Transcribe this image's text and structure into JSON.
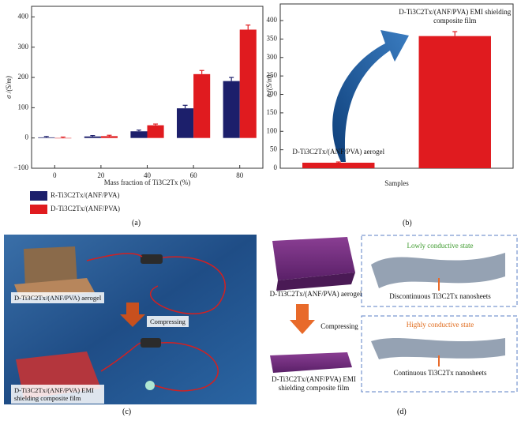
{
  "chart_data": [
    {
      "type": "bar",
      "label": "(a)",
      "y_label": "σ /(S/m)",
      "x_label": "Mass fraction of Ti3C2Tx (%)",
      "categories": [
        "0",
        "20",
        "40",
        "60",
        "80"
      ],
      "series": [
        {
          "name": "R-Ti3C2Tx/(ANF/PVA)",
          "color": "#1c1f6b",
          "values": [
            2,
            5,
            22,
            98,
            188
          ],
          "errors": [
            3,
            3,
            4,
            10,
            12
          ]
        },
        {
          "name": "D-Ti3C2Tx/(ANF/PVA)",
          "color": "#e01b1f",
          "values": [
            0,
            6,
            42,
            211,
            358
          ],
          "errors": [
            3,
            3,
            4,
            12,
            15
          ]
        }
      ],
      "ylim": [
        -100,
        435
      ],
      "yticks": [
        {
          "value": -100,
          "label": "−100"
        },
        0,
        100,
        200,
        300,
        400
      ],
      "legend": "bottom-left"
    },
    {
      "type": "bar",
      "label": "(b)",
      "y_label": "σ /(S/m)",
      "x_label": "Samples",
      "categories": [
        "D-Ti3C2Tx/(ANF/PVA) aerogel",
        "D-Ti3C2Tx/(ANF/PVA) EMI shielding composite film"
      ],
      "values": [
        15,
        358
      ],
      "errors": [
        2,
        12
      ],
      "color": "#e01b1f",
      "ylim": [
        0,
        445
      ],
      "yticks": [
        0,
        50,
        100,
        150,
        200,
        250,
        300,
        350,
        400
      ]
    }
  ],
  "photo_panel": {
    "label": "(c)",
    "top_caption": "D-Ti3C2Tx/(ANF/PVA) aerogel",
    "action": "Compressing",
    "bottom_caption": "D-Ti3C2Tx/(ANF/PVA) EMI shielding composite film"
  },
  "schematic_panel": {
    "label": "(d)",
    "top_caption": "D-Ti3C2Tx/(ANF/PVA) aerogel",
    "action": "Compressing",
    "bottom_caption": "D-Ti3C2Tx/(ANF/PVA) EMI shielding composite film",
    "top_state": "Lowly conductive state",
    "top_note": "Discontinuous Ti3C2Tx nanosheets",
    "bottom_state": "Highly conductive state",
    "bottom_note": "Continuous Ti3C2Tx nanosheets"
  }
}
